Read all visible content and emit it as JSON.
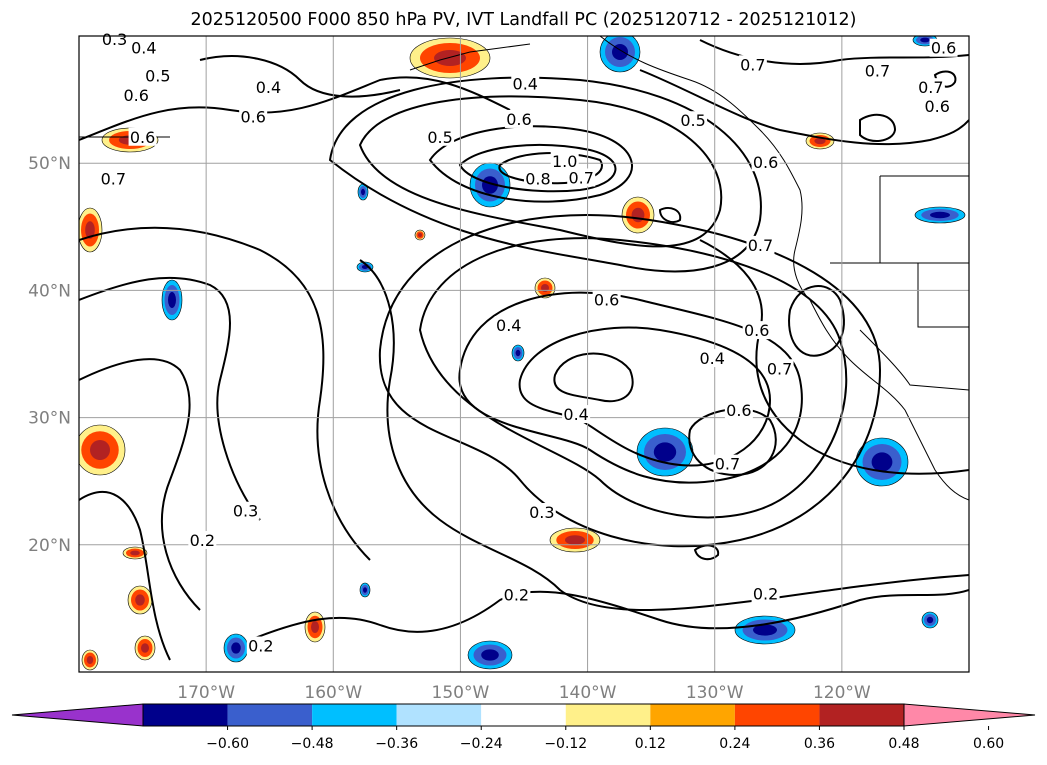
{
  "title": "2025120500 F000 850 hPa PV, IVT Landfall PC (2025120712 - 2025121012)",
  "map": {
    "lon_range": [
      -180,
      -110
    ],
    "lat_range": [
      10,
      60
    ],
    "lon_ticks": [
      {
        "lon": -170,
        "label": "170°W"
      },
      {
        "lon": -160,
        "label": "160°W"
      },
      {
        "lon": -150,
        "label": "150°W"
      },
      {
        "lon": -140,
        "label": "140°W"
      },
      {
        "lon": -130,
        "label": "130°W"
      },
      {
        "lon": -120,
        "label": "120°W"
      }
    ],
    "lat_ticks": [
      {
        "lat": 50,
        "label": "50°N"
      },
      {
        "lat": 40,
        "label": "40°N"
      },
      {
        "lat": 30,
        "label": "30°N"
      },
      {
        "lat": 20,
        "label": "20°N"
      }
    ],
    "grid": true,
    "contour_labels": [
      {
        "text": "0.3",
        "lon": -177.2,
        "lat": 59.7
      },
      {
        "text": "0.4",
        "lon": -174.9,
        "lat": 59.0
      },
      {
        "text": "0.5",
        "lon": -173.8,
        "lat": 56.8
      },
      {
        "text": "0.6",
        "lon": -175.5,
        "lat": 55.3
      },
      {
        "text": "0.6",
        "lon": -175.0,
        "lat": 52.0
      },
      {
        "text": "0.4",
        "lon": -165.1,
        "lat": 55.9
      },
      {
        "text": "0.6",
        "lon": -166.3,
        "lat": 53.6
      },
      {
        "text": "0.7",
        "lon": -177.3,
        "lat": 48.7
      },
      {
        "text": "0.4",
        "lon": -144.9,
        "lat": 56.2
      },
      {
        "text": "0.6",
        "lon": -145.4,
        "lat": 53.4
      },
      {
        "text": "0.5",
        "lon": -151.6,
        "lat": 52.0
      },
      {
        "text": "0.5",
        "lon": -131.7,
        "lat": 53.3
      },
      {
        "text": "1.0",
        "lon": -141.8,
        "lat": 50.1
      },
      {
        "text": "0.8",
        "lon": -143.9,
        "lat": 48.7
      },
      {
        "text": "0.7",
        "lon": -140.5,
        "lat": 48.8
      },
      {
        "text": "0.7",
        "lon": -127.0,
        "lat": 57.7
      },
      {
        "text": "0.7",
        "lon": -117.2,
        "lat": 57.2
      },
      {
        "text": "0.6",
        "lon": -112.0,
        "lat": 59.0
      },
      {
        "text": "0.7",
        "lon": -113.0,
        "lat": 55.9
      },
      {
        "text": "0.6",
        "lon": -112.5,
        "lat": 54.4
      },
      {
        "text": "0.6",
        "lon": -126.0,
        "lat": 50.0
      },
      {
        "text": "0.7",
        "lon": -126.4,
        "lat": 43.5
      },
      {
        "text": "0.6",
        "lon": -138.5,
        "lat": 39.2
      },
      {
        "text": "0.4",
        "lon": -146.2,
        "lat": 37.2
      },
      {
        "text": "0.6",
        "lon": -126.7,
        "lat": 36.8
      },
      {
        "text": "0.4",
        "lon": -130.2,
        "lat": 34.6
      },
      {
        "text": "0.7",
        "lon": -124.9,
        "lat": 33.8
      },
      {
        "text": "0.4",
        "lon": -140.9,
        "lat": 30.2
      },
      {
        "text": "0.6",
        "lon": -128.1,
        "lat": 30.5
      },
      {
        "text": "0.7",
        "lon": -129.0,
        "lat": 26.3
      },
      {
        "text": "0.3",
        "lon": -166.9,
        "lat": 22.6
      },
      {
        "text": "0.2",
        "lon": -170.3,
        "lat": 20.3
      },
      {
        "text": "0.3",
        "lon": -143.6,
        "lat": 22.5
      },
      {
        "text": "0.2",
        "lon": -145.6,
        "lat": 16.0
      },
      {
        "text": "0.2",
        "lon": -126.0,
        "lat": 16.1
      },
      {
        "text": "0.2",
        "lon": -165.7,
        "lat": 12.0
      }
    ]
  },
  "colorbar": {
    "colors": [
      "#9932cc",
      "#00008b",
      "#3a5fcd",
      "#00bfff",
      "#b0e2ff",
      "#ffffff",
      "#fff08a",
      "#ffa500",
      "#ff4500",
      "#b22222",
      "#ff88a8"
    ],
    "tick_labels": [
      "−0.60",
      "−0.48",
      "−0.36",
      "−0.24",
      "−0.12",
      "0.12",
      "0.24",
      "0.36",
      "0.48",
      "0.60"
    ]
  },
  "shading": {
    "positive_colors": [
      "#fff08a",
      "#ff4500",
      "#b22222"
    ],
    "negative_colors": [
      "#00bfff",
      "#3a5fcd",
      "#00008b"
    ]
  }
}
